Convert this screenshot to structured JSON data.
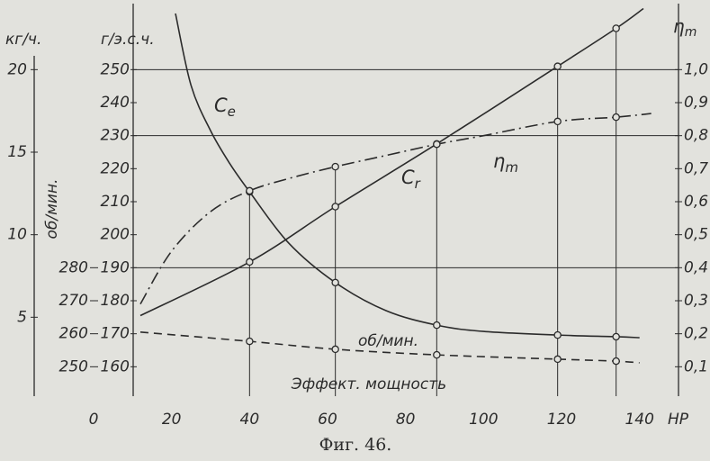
{
  "chart_data": {
    "type": "line",
    "caption": "Фиг. 46.",
    "x_label": "Эффект. мощность",
    "x_unit": "HP",
    "xlim": [
      0,
      150
    ],
    "xticks": [
      0,
      20,
      40,
      60,
      80,
      100,
      120,
      140
    ],
    "xgrid": [
      40,
      62,
      88,
      119,
      134
    ],
    "ylabel": "г/э.с.ч.",
    "ylim": [
      150,
      270
    ],
    "yticks": [
      160,
      170,
      180,
      190,
      200,
      210,
      220,
      230,
      240,
      250
    ],
    "ygrid": [
      250,
      230,
      190
    ],
    "y2label": {
      "text": "η",
      "sub": "m"
    },
    "y2lim": [
      0,
      1.2
    ],
    "y2ticks": [
      {
        "value": 0.1,
        "label": "0,1"
      },
      {
        "value": 0.2,
        "label": "0,2"
      },
      {
        "value": 0.3,
        "label": "0,3"
      },
      {
        "value": 0.4,
        "label": "0,4"
      },
      {
        "value": 0.5,
        "label": "0,5"
      },
      {
        "value": 0.6,
        "label": "0,6"
      },
      {
        "value": 0.7,
        "label": "0,7"
      },
      {
        "value": 0.8,
        "label": "0,8"
      },
      {
        "value": 0.9,
        "label": "0,9"
      },
      {
        "value": 1.0,
        "label": "1,0"
      }
    ],
    "y3label": "кг/ч.",
    "y3lim": [
      0,
      24
    ],
    "y3ticks": [
      5,
      10,
      15,
      20
    ],
    "y4label": "об/мин.",
    "y4lim": [
      240,
      360
    ],
    "y4ticks": [
      250,
      260,
      270,
      280
    ],
    "series": [
      {
        "label": {
          "text": "C",
          "sub": "e"
        },
        "axis": "y",
        "color": "#2b2b2b",
        "dash": "solid",
        "x": [
          21,
          25,
          30,
          35,
          40,
          50,
          62,
          75,
          88,
          100,
          119,
          134,
          140
        ],
        "values": [
          267,
          245.2,
          231.5,
          221.4,
          213,
          197.5,
          185.5,
          177,
          172.6,
          170.7,
          169.6,
          169.1,
          168.8
        ]
      },
      {
        "label": {
          "text": "C",
          "sub": "r"
        },
        "axis": "y3",
        "color": "#2b2b2b",
        "dash": "solid",
        "x": [
          12,
          40,
          62,
          88,
          119,
          134,
          141
        ],
        "values": [
          5.1,
          8.35,
          11.7,
          15.5,
          20.2,
          22.5,
          23.7
        ]
      },
      {
        "label": {
          "text": "η",
          "sub": "m"
        },
        "axis": "y2",
        "color": "#2b2b2b",
        "dash": "dashdot",
        "x": [
          12,
          20,
          30,
          40,
          50,
          62,
          75,
          88,
          100,
          119,
          134,
          143
        ],
        "values": [
          0.29,
          0.45,
          0.57,
          0.633,
          0.67,
          0.706,
          0.74,
          0.774,
          0.8,
          0.843,
          0.856,
          0.867
        ]
      },
      {
        "label": {
          "text": "об/мин."
        },
        "axis": "y4",
        "color": "#2b2b2b",
        "dash": "dashed",
        "x": [
          12,
          40,
          62,
          88,
          119,
          134,
          140
        ],
        "values": [
          260.5,
          257.7,
          255.3,
          253.6,
          252.3,
          251.7,
          251.2
        ]
      }
    ]
  }
}
